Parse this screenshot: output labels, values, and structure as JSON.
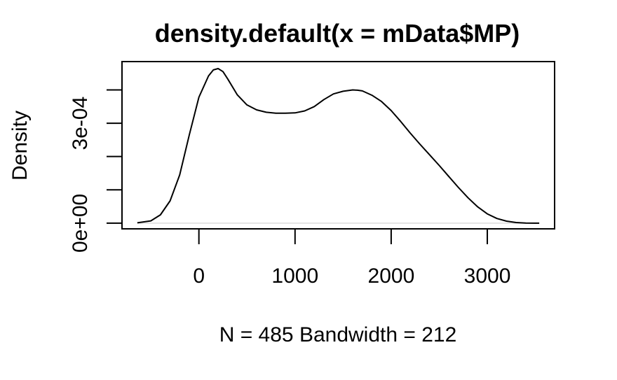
{
  "chart_data": {
    "type": "line",
    "title": "density.default(x = mData$MP)",
    "xlabel": "N = 485   Bandwidth = 212",
    "ylabel": "Density",
    "xlim": [
      -800,
      3700
    ],
    "ylim": [
      -1.7e-05,
      0.000485
    ],
    "x_ticks": [
      0,
      1000,
      2000,
      3000
    ],
    "x_tick_labels": [
      "0",
      "1000",
      "2000",
      "3000"
    ],
    "y_ticks": [
      0,
      0.0001,
      0.0002,
      0.0003,
      0.0004
    ],
    "y_tick_labels": [
      "0e+00",
      "",
      "",
      "3e-04",
      ""
    ],
    "grid": false,
    "legend": "none",
    "line_color": "#000000",
    "series": [
      {
        "x": [
          -640,
          -500,
          -400,
          -300,
          -200,
          -100,
          0,
          100,
          150,
          200,
          250,
          300,
          400,
          500,
          600,
          700,
          800,
          900,
          1000,
          1100,
          1200,
          1300,
          1400,
          1500,
          1600,
          1650,
          1700,
          1800,
          1900,
          2000,
          2100,
          2200,
          2300,
          2400,
          2500,
          2600,
          2700,
          2800,
          2900,
          3000,
          3100,
          3200,
          3300,
          3400,
          3500,
          3540
        ],
        "y": [
          1e-06,
          7e-06,
          2.5e-05,
          6.7e-05,
          0.000145,
          0.000265,
          0.000378,
          0.000442,
          0.00046,
          0.000464,
          0.000455,
          0.000433,
          0.000385,
          0.000355,
          0.00034,
          0.000333,
          0.00033,
          0.00033,
          0.000331,
          0.000337,
          0.00035,
          0.000371,
          0.000388,
          0.000396,
          0.0004,
          0.000399,
          0.000397,
          0.000384,
          0.000365,
          0.000338,
          0.000305,
          0.00027,
          0.000237,
          0.000205,
          0.000173,
          0.00014,
          0.000107,
          7.6e-05,
          4.9e-05,
          2.8e-05,
          1.4e-05,
          6e-06,
          2e-06,
          5e-07,
          1e-07,
          1e-07
        ]
      }
    ]
  }
}
